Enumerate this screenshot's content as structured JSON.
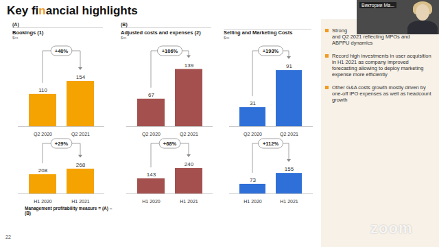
{
  "slide": {
    "title": "Key financial highlights",
    "section_labels": [
      "(A)",
      "(B)"
    ],
    "formula": "Management profitability measure = (A) – (B)",
    "page_number": "22",
    "bullets": [
      [
        "Strong",
        "and Q2 2021 reflecting MPOs and",
        "ABPPU dynamics"
      ],
      [
        "Record high investments in user acquisition in H1 2021 as company improved forecasting allowing to deploy marketing expense more efficiently"
      ],
      [
        "Other G&A costs growth mostly driven by one-off IPO expenses as well as headcount growth"
      ]
    ],
    "presenter": "Виктории Ма...",
    "watermark": "zoom"
  },
  "chart_data": [
    {
      "type": "bar",
      "title": "Bookings (1)",
      "subtitle": "$m",
      "categories": [
        "Q2 2020",
        "Q2 2021"
      ],
      "values": [
        110,
        154
      ],
      "color": "#f5a300",
      "ylim": [
        0,
        210
      ],
      "data_labels": true,
      "tick_labels": "x",
      "annotations": [
        "+40%"
      ]
    },
    {
      "type": "bar",
      "title": "Adjusted costs and expenses (2)",
      "subtitle": "$m",
      "categories": [
        "Q2 2020",
        "Q2 2021"
      ],
      "values": [
        67,
        139
      ],
      "color": "#a3504e",
      "ylim": [
        0,
        150
      ],
      "data_labels": true,
      "tick_labels": "x",
      "annotations": [
        "+106%"
      ]
    },
    {
      "type": "bar",
      "title": "Selling and Marketing Costs",
      "subtitle": "$m",
      "categories": [
        "Q2 2020",
        "Q2 2021"
      ],
      "values": [
        31,
        91
      ],
      "color": "#2f6fd8",
      "ylim": [
        0,
        100
      ],
      "data_labels": true,
      "tick_labels": "x",
      "annotations": [
        "+193%"
      ]
    },
    {
      "type": "bar",
      "categories": [
        "H1 2020",
        "H1 2021"
      ],
      "values": [
        208,
        268
      ],
      "color": "#f5a300",
      "ylim": [
        0,
        400
      ],
      "data_labels": true,
      "tick_labels": "x",
      "annotations": [
        "+29%"
      ]
    },
    {
      "type": "bar",
      "categories": [
        "H1 2020",
        "H1 2021"
      ],
      "values": [
        143,
        240
      ],
      "color": "#a3504e",
      "ylim": [
        0,
        350
      ],
      "data_labels": true,
      "tick_labels": "x",
      "annotations": [
        "+68%"
      ]
    },
    {
      "type": "bar",
      "categories": [
        "H1 2020",
        "H1 2021"
      ],
      "values": [
        73,
        155
      ],
      "color": "#2f6fd8",
      "ylim": [
        0,
        280
      ],
      "data_labels": true,
      "tick_labels": "x",
      "annotations": [
        "+112%"
      ]
    }
  ]
}
